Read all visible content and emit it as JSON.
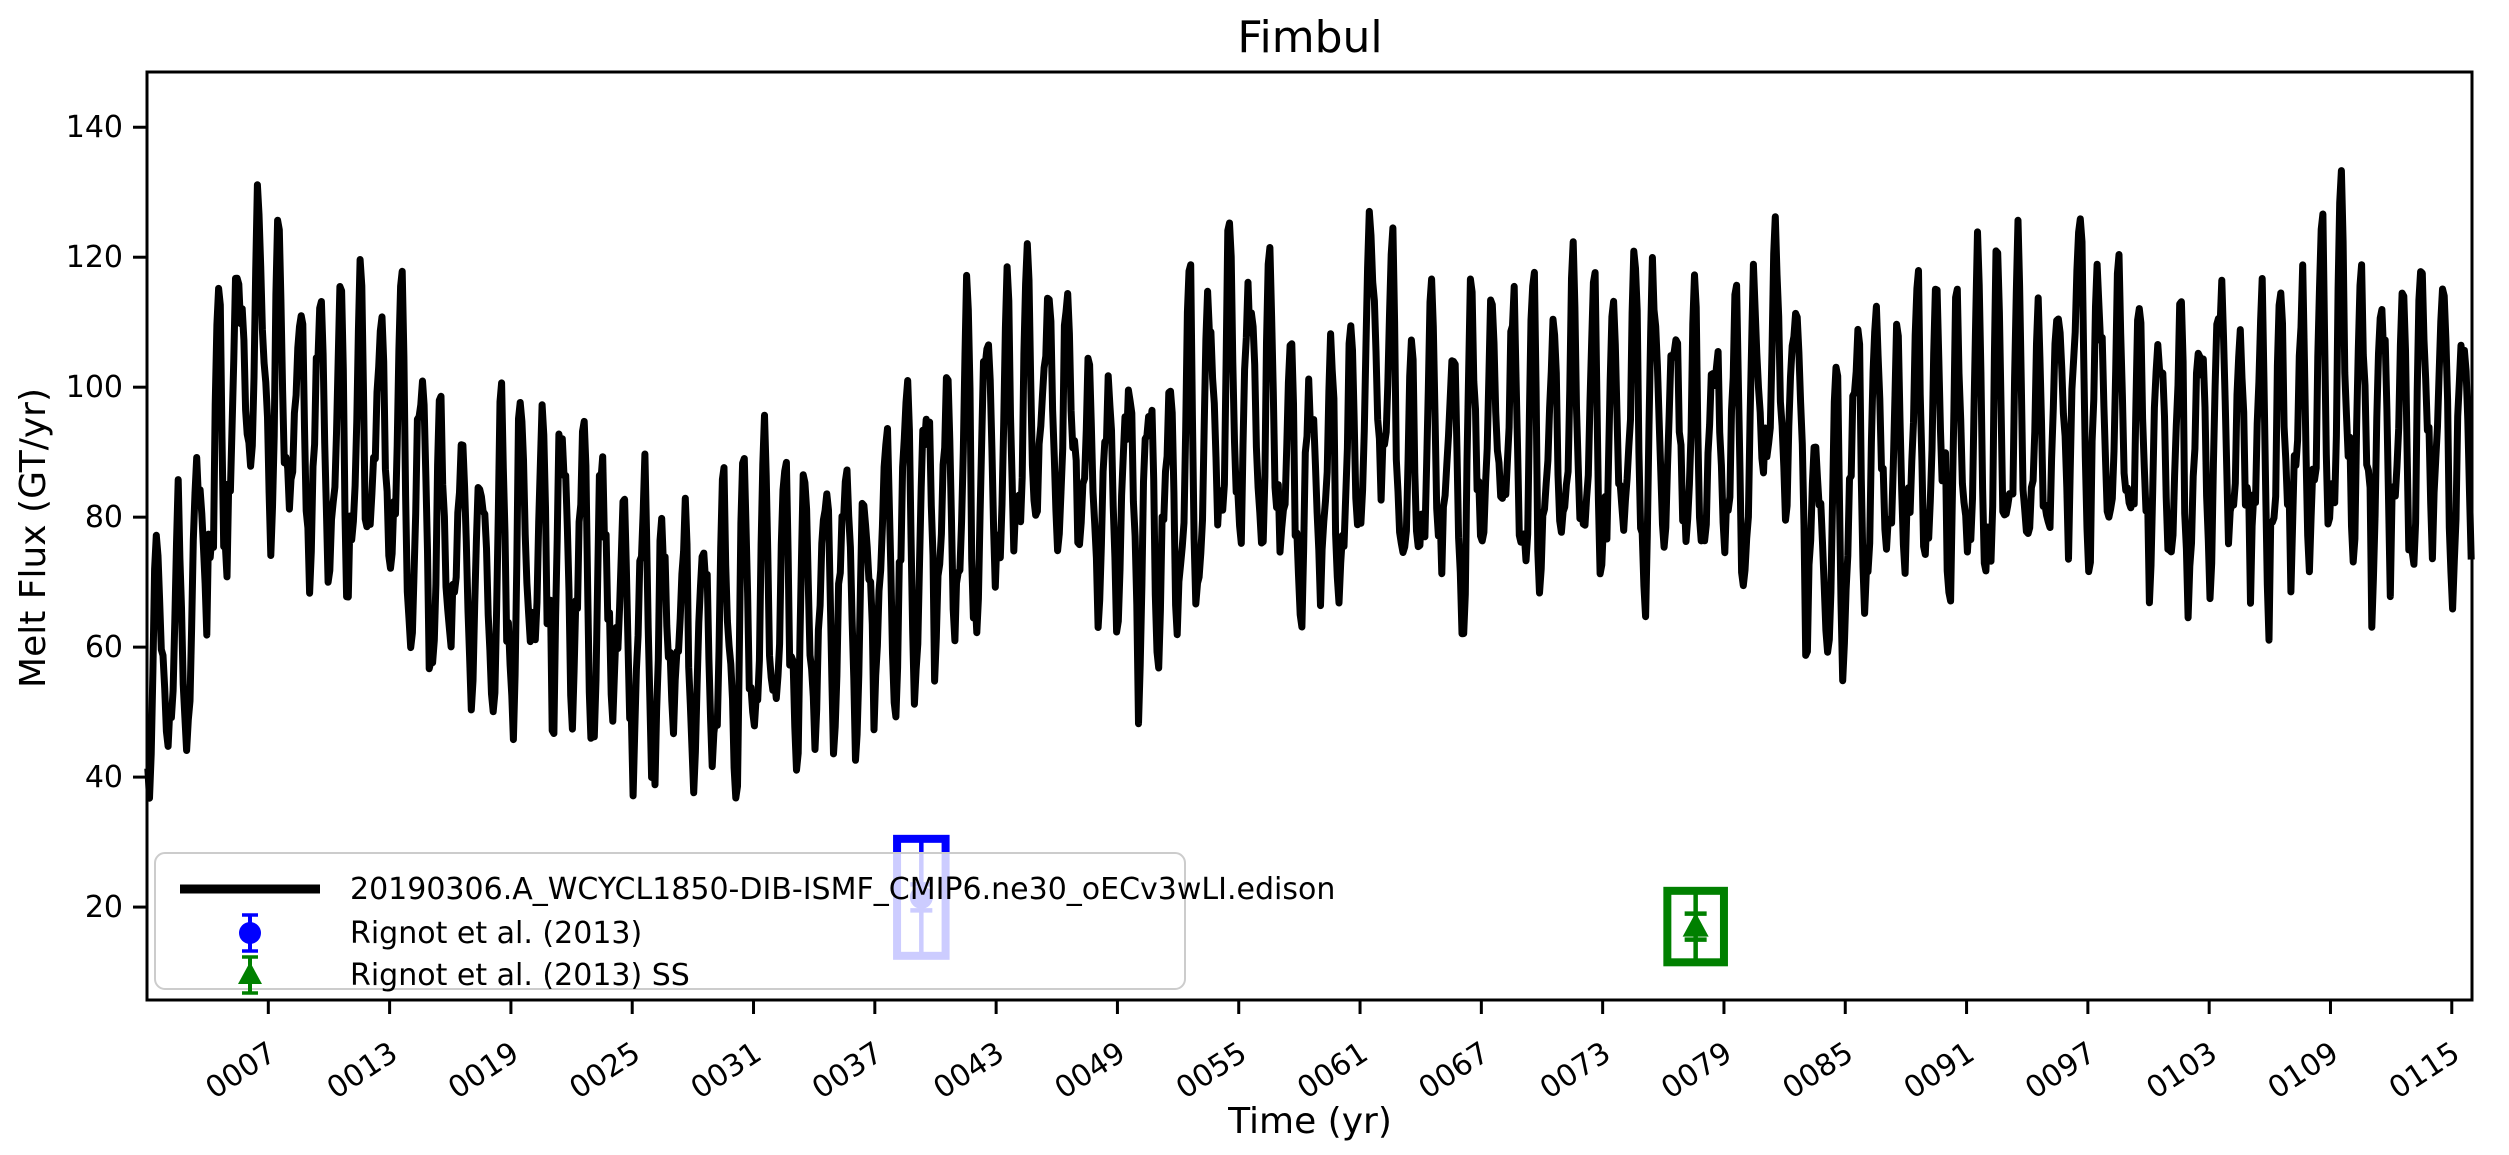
{
  "title": "Fimbul",
  "xlabel": "Time (yr)",
  "ylabel": "Melt Flux (GT/yr)",
  "legend": {
    "position": "lower left",
    "items": [
      {
        "label": "20190306.A_WCYCL1850-DIB-ISMF_CMIP6.ne30_oECv3wLI.edison",
        "type": "line",
        "color": "#000000"
      },
      {
        "label": "Rignot et al. (2013)",
        "type": "circle-errorbar",
        "color": "#0000ff"
      },
      {
        "label": "Rignot et al. (2013) SS",
        "type": "triangle-errorbar",
        "color": "#008000"
      }
    ]
  },
  "chart_data": {
    "type": "line",
    "title": "Fimbul",
    "xlabel": "Time (yr)",
    "ylabel": "Melt Flux (GT/yr)",
    "grid": false,
    "legend_position": "lower left",
    "xlim": [
      1,
      116
    ],
    "ylim": [
      5.7,
      148.5
    ],
    "xticks": {
      "values": [
        7,
        13,
        19,
        25,
        31,
        37,
        43,
        49,
        55,
        61,
        67,
        73,
        79,
        85,
        91,
        97,
        103,
        109,
        115
      ],
      "labels": [
        "0007",
        "0013",
        "0019",
        "0025",
        "0031",
        "0037",
        "0043",
        "0049",
        "0055",
        "0061",
        "0067",
        "0073",
        "0079",
        "0085",
        "0091",
        "0097",
        "0103",
        "0109",
        "0115"
      ],
      "rotation_deg": -33
    },
    "yticks": {
      "values": [
        20,
        40,
        60,
        80,
        100,
        120,
        140
      ],
      "labels": [
        "20",
        "40",
        "60",
        "80",
        "100",
        "120",
        "140"
      ]
    },
    "series": [
      {
        "name": "20190306.A_WCYCL1850-DIB-ISMF_CMIP6.ne30_oECv3wLI.edison",
        "color": "#000000",
        "line_width": 7,
        "resolution": "monthly",
        "start_year": 1,
        "seasonal_amplitude": 19,
        "value_range_observed": [
          37,
          141
        ],
        "annual_means": [
          54,
          56,
          70,
          85,
          100,
          105,
          95,
          92,
          90,
          85,
          88,
          92,
          85,
          78,
          72,
          74,
          70,
          68,
          70,
          72,
          70,
          68,
          64,
          62,
          60,
          58,
          60,
          56,
          60,
          58,
          62,
          64,
          60,
          65,
          68,
          62,
          70,
          72,
          75,
          78,
          82,
          85,
          88,
          92,
          96,
          92,
          85,
          80,
          82,
          75,
          78,
          85,
          92,
          95,
          95,
          90,
          85,
          82,
          80,
          85,
          100,
          95,
          85,
          90,
          88,
          85,
          92,
          90,
          85,
          90,
          92,
          88,
          90,
          92,
          90,
          92,
          88,
          90,
          88,
          92,
          100,
          95,
          75,
          72,
          85,
          88,
          85,
          90,
          92,
          85,
          88,
          90,
          92,
          88,
          95,
          98,
          95,
          92,
          90,
          88,
          85,
          90,
          92,
          88,
          85,
          90,
          88,
          95,
          98,
          92,
          88,
          90,
          95,
          92,
          88
        ]
      }
    ],
    "observations": [
      {
        "name": "Rignot et al. (2013)",
        "marker": "circle",
        "color": "#0000ff",
        "year": 39.3,
        "year_halfwidth": 1.2,
        "value": 21.5,
        "error": 9
      },
      {
        "name": "Rignot et al. (2013) SS",
        "marker": "triangle",
        "color": "#008000",
        "year": 77.6,
        "year_halfwidth": 1.4,
        "value": 17,
        "error": 5.5
      }
    ]
  },
  "style": {
    "axes_color": "#000000",
    "legend_border_color": "#cccccc",
    "legend_bg": "rgba(255,255,255,0.8)"
  }
}
